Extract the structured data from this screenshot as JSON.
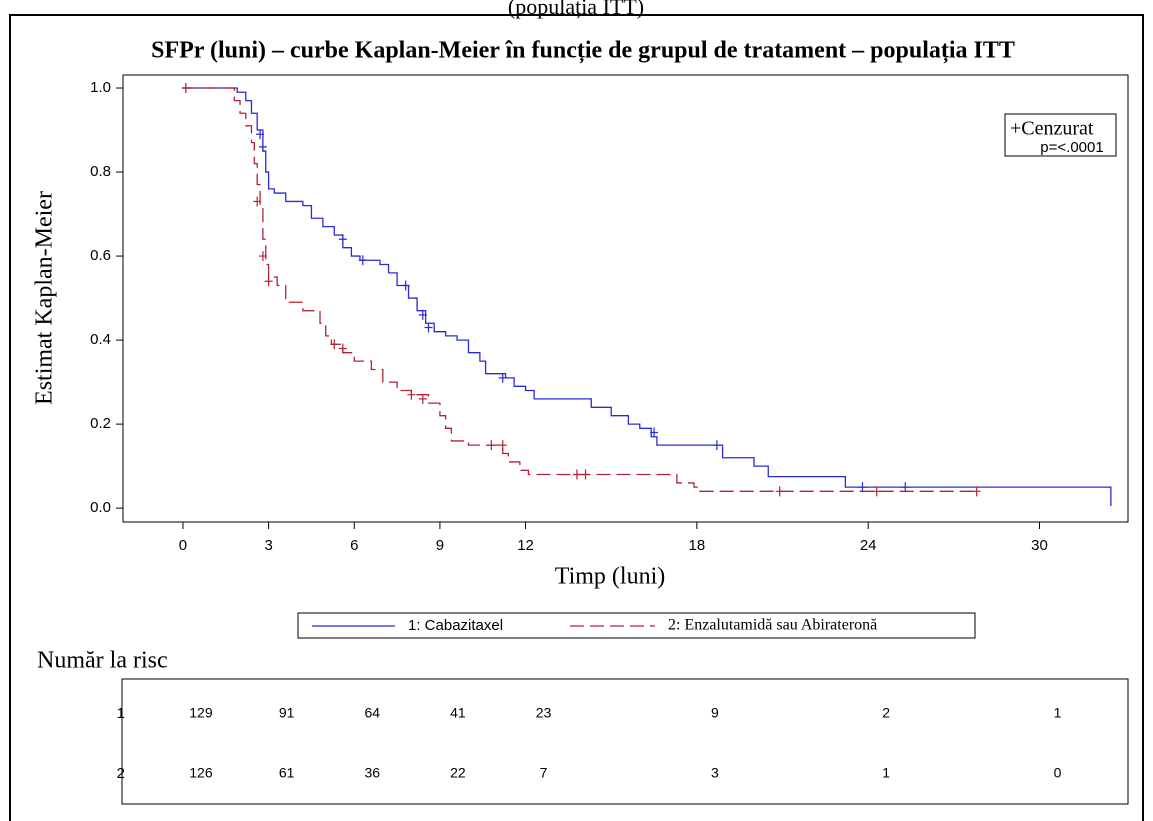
{
  "chart_data": {
    "type": "line",
    "step": "post",
    "top_text": "(populația ITT)",
    "title": "SFPr (luni) – curbe Kaplan-Meier în funcție de grupul de tratament – populația ITT",
    "x_label": "Timp (luni)",
    "y_label": "Estimat Kaplan-Meier",
    "xlim": [
      -2.1,
      33.1
    ],
    "xticks": [
      0,
      3,
      6,
      9,
      12,
      18,
      24,
      30
    ],
    "ylim": [
      -0.033,
      1.031
    ],
    "yticks": [
      {
        "value": 0,
        "label": "0.0"
      },
      {
        "value": 0.2,
        "label": "0.2"
      },
      {
        "value": 0.4,
        "label": "0.4"
      },
      {
        "value": 0.6,
        "label": "0.6"
      },
      {
        "value": 0.8,
        "label": "0.8"
      },
      {
        "value": 1,
        "label": "1.0"
      }
    ],
    "censor_label": "+Cenzurat",
    "p_value": "p=<.0001",
    "series": [
      {
        "name": "1: Cabazitaxel",
        "color": "#2b2bd6",
        "dash": false,
        "x": [
          0,
          1.9,
          2.2,
          2.4,
          2.6,
          2.8,
          2.9,
          3.0,
          3.2,
          3.6,
          4.2,
          4.5,
          4.9,
          5.3,
          5.6,
          5.9,
          6.2,
          6.9,
          7.2,
          7.5,
          7.9,
          8.2,
          8.5,
          8.8,
          9.2,
          9.6,
          10.0,
          10.4,
          10.6,
          11.3,
          11.6,
          12.0,
          12.3,
          14.3,
          15.0,
          15.6,
          16.0,
          16.4,
          16.6,
          18.9,
          20.0,
          20.5,
          23.2,
          32.5
        ],
        "values": [
          1.0,
          0.99,
          0.97,
          0.94,
          0.9,
          0.85,
          0.8,
          0.76,
          0.75,
          0.73,
          0.72,
          0.69,
          0.67,
          0.65,
          0.62,
          0.6,
          0.59,
          0.58,
          0.56,
          0.53,
          0.5,
          0.47,
          0.44,
          0.42,
          0.41,
          0.4,
          0.37,
          0.35,
          0.32,
          0.31,
          0.29,
          0.28,
          0.26,
          0.24,
          0.22,
          0.2,
          0.19,
          0.17,
          0.15,
          0.12,
          0.1,
          0.075,
          0.05,
          0.005
        ],
        "censored_x": [
          2.7,
          2.8,
          5.6,
          6.3,
          7.8,
          8.4,
          8.6,
          11.2,
          16.5,
          18.7,
          23.8,
          25.3
        ],
        "censored_values": [
          0.89,
          0.86,
          0.64,
          0.59,
          0.53,
          0.46,
          0.43,
          0.31,
          0.18,
          0.15,
          0.05,
          0.05
        ]
      },
      {
        "name": "2: Enzalutamidă sau Abirateronă",
        "color": "#b22234",
        "dash": true,
        "x": [
          0,
          1.8,
          2.0,
          2.2,
          2.4,
          2.5,
          2.6,
          2.7,
          2.8,
          2.9,
          3.0,
          3.3,
          3.6,
          4.2,
          4.8,
          5.0,
          5.2,
          5.6,
          6.0,
          6.6,
          7.0,
          7.5,
          8.0,
          8.6,
          9.0,
          9.2,
          9.4,
          10.0,
          11.2,
          11.4,
          11.8,
          12.1,
          17.3,
          17.9,
          18.1,
          27.8
        ],
        "values": [
          1.0,
          0.97,
          0.94,
          0.91,
          0.87,
          0.82,
          0.77,
          0.72,
          0.64,
          0.58,
          0.55,
          0.53,
          0.49,
          0.47,
          0.44,
          0.41,
          0.39,
          0.37,
          0.35,
          0.33,
          0.3,
          0.28,
          0.27,
          0.25,
          0.22,
          0.19,
          0.16,
          0.15,
          0.13,
          0.11,
          0.09,
          0.08,
          0.06,
          0.05,
          0.04,
          0.04
        ],
        "censored_x": [
          0.1,
          2.6,
          2.8,
          3.0,
          5.3,
          5.6,
          8.0,
          8.4,
          10.8,
          11.2,
          13.8,
          14.1,
          20.9,
          24.3,
          27.8
        ],
        "censored_values": [
          1.0,
          0.73,
          0.6,
          0.54,
          0.39,
          0.38,
          0.27,
          0.26,
          0.15,
          0.15,
          0.08,
          0.08,
          0.04,
          0.04,
          0.04
        ]
      }
    ],
    "at_risk": {
      "title": "Număr la risc",
      "rows": [
        {
          "label": "1",
          "counts": [
            129,
            91,
            64,
            41,
            23,
            9,
            2,
            1
          ]
        },
        {
          "label": "2",
          "counts": [
            126,
            61,
            36,
            22,
            7,
            3,
            1,
            0
          ]
        }
      ]
    }
  }
}
